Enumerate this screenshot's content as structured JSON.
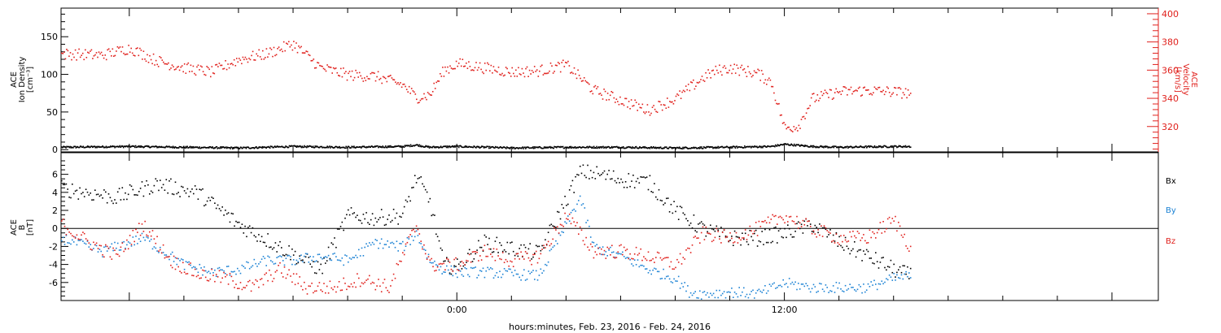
{
  "xlabel": "hours:minutes, Feb. 23, 2016 - Feb. 24, 2016",
  "colors": {
    "axis": "#000000",
    "red": "#e0201c",
    "blue": "#1b82d4",
    "black": "#000000"
  },
  "chart_data": [
    {
      "type": "scatter",
      "panel": "top",
      "xlim": [
        -14.5,
        25.7
      ],
      "x_ticks": [
        "0:00",
        "12:00"
      ],
      "left_axis": {
        "label": [
          "ACE",
          "Ion Density",
          "[cm⁻³]"
        ],
        "ylim": [
          -3,
          188
        ],
        "ticks": [
          "0",
          "50",
          "100",
          "150"
        ]
      },
      "right_axis": {
        "label": [
          "ACE",
          "Velocity",
          "[km/s]"
        ],
        "ylim": [
          302,
          404
        ],
        "ticks": [
          "320",
          "340",
          "360",
          "380",
          "400"
        ]
      },
      "series": [
        {
          "color": "#000000",
          "axis": "left",
          "x": [
            -14.5,
            -12,
            -10,
            -8,
            -6,
            -4,
            -2,
            -1.5,
            -1.2,
            -1,
            0,
            2,
            4,
            6,
            8,
            10,
            11.5,
            12,
            13,
            14,
            16,
            16.6
          ],
          "y": [
            4,
            5,
            4,
            3,
            5,
            4,
            5,
            7,
            5,
            4,
            5,
            3,
            4,
            4,
            3,
            4,
            5,
            8,
            5,
            4,
            5,
            5
          ]
        },
        {
          "color": "#e0201c",
          "axis": "right",
          "x": [
            -14.5,
            -13,
            -12,
            -11,
            -10,
            -9,
            -8,
            -7,
            -6,
            -5,
            -4,
            -3,
            -2,
            -1.5,
            -1,
            -0.5,
            0,
            1,
            2,
            3,
            4,
            5,
            6,
            7,
            8,
            9,
            9.5,
            10,
            11,
            11.5,
            12,
            12.5,
            13,
            14,
            15,
            16,
            16.6
          ],
          "y": [
            372,
            371,
            376,
            367,
            362,
            359,
            368,
            372,
            379,
            362,
            357,
            356,
            350,
            341,
            343,
            360,
            365,
            362,
            359,
            360,
            364,
            346,
            339,
            332,
            340,
            355,
            360,
            362,
            358,
            352,
            319,
            321,
            340,
            345,
            346,
            345,
            344
          ]
        }
      ]
    },
    {
      "type": "scatter",
      "panel": "bottom",
      "xlim": [
        -14.5,
        25.7
      ],
      "x_ticks": [
        "0:00",
        "12:00"
      ],
      "y_axis": {
        "label": [
          "ACE",
          "B",
          "[nT]"
        ],
        "ylim": [
          -8,
          8.4
        ],
        "ticks": [
          "-6",
          "-4",
          "-2",
          "0",
          "2",
          "4",
          "6"
        ]
      },
      "legend": [
        "Bx",
        "By",
        "Bz"
      ],
      "series": [
        {
          "name": "Bx",
          "color": "#000000",
          "x": [
            -14.5,
            -12.5,
            -11,
            -9.5,
            -8,
            -6.5,
            -5,
            -4,
            -3,
            -2,
            -1.5,
            -1,
            -0.5,
            0,
            1,
            2,
            3,
            4.5,
            5,
            6,
            7,
            8,
            9,
            10,
            11,
            12,
            13,
            14,
            15,
            16,
            16.6
          ],
          "y": [
            4.5,
            3.5,
            5,
            4,
            0.5,
            -2,
            -4.5,
            1.5,
            1.2,
            1.5,
            5.8,
            3,
            -4,
            -4.2,
            -1.5,
            -2.2,
            -2.7,
            6.3,
            6.2,
            5.5,
            5.2,
            2,
            0,
            -1,
            -1,
            -0.5,
            0.5,
            -1.5,
            -3,
            -4.5,
            -5.2
          ]
        },
        {
          "name": "By",
          "color": "#1b82d4",
          "x": [
            -14.5,
            -13,
            -11.5,
            -10,
            -9,
            -8,
            -7,
            -6,
            -5,
            -4,
            -3,
            -2,
            -1.5,
            -1,
            -0.5,
            0,
            1,
            2,
            3,
            4.5,
            5,
            6,
            7,
            8,
            8.5,
            9,
            10,
            11,
            12,
            13,
            14,
            15,
            16,
            16.6
          ],
          "y": [
            -1,
            -2.5,
            -1,
            -4,
            -4.8,
            -4.5,
            -3.5,
            -3.5,
            -3,
            -3.5,
            -1.5,
            -2,
            -0.5,
            -3.5,
            -4.5,
            -4.8,
            -4.8,
            -5,
            -5.2,
            3.5,
            -2,
            -3,
            -4.5,
            -5.5,
            -7,
            -7.2,
            -7,
            -7.2,
            -6,
            -6.5,
            -6.5,
            -6.5,
            -5.5,
            -5.2
          ]
        },
        {
          "name": "Bz",
          "color": "#e0201c",
          "x": [
            -14.5,
            -13.5,
            -12.5,
            -11.5,
            -10.5,
            -9.5,
            -8.5,
            -7.5,
            -6.5,
            -5.5,
            -4.5,
            -3.5,
            -2.5,
            -1.5,
            -1,
            0,
            1,
            2,
            3,
            4,
            5,
            6,
            7,
            8,
            9,
            10,
            11,
            12,
            13,
            14,
            15,
            16,
            16.6
          ],
          "y": [
            0.5,
            -1.5,
            -3,
            0.5,
            -3.5,
            -5,
            -5.5,
            -6.5,
            -4.5,
            -6.5,
            -6.5,
            -5.5,
            -6.5,
            0.5,
            -4,
            -4,
            -2.5,
            -3.5,
            -3,
            1.5,
            -2.5,
            -2.5,
            -3,
            -4,
            -0.5,
            -1,
            0,
            1.5,
            0,
            -1,
            -1,
            1,
            -2
          ]
        }
      ]
    }
  ]
}
